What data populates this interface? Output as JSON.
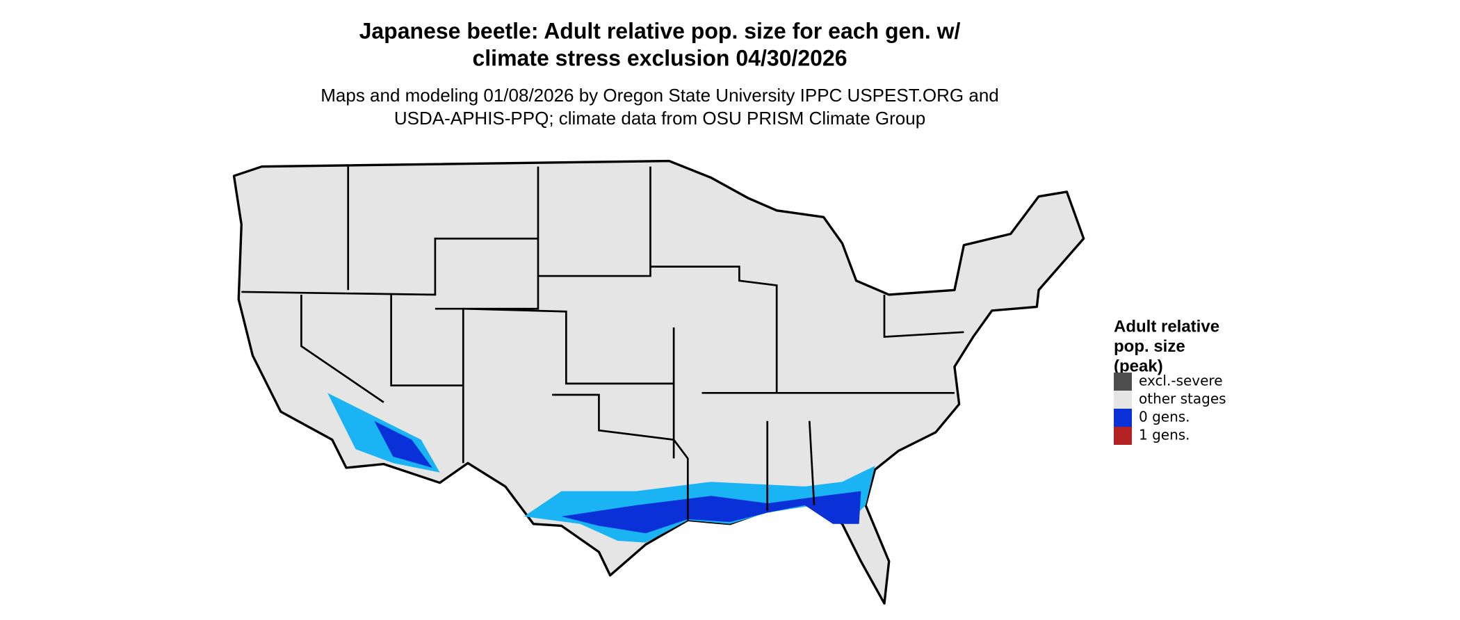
{
  "title_lines": [
    "Japanese beetle: Adult relative pop. size for each gen. w/",
    "climate stress exclusion 04/30/2026"
  ],
  "subtitle_lines": [
    "Maps and modeling 01/08/2026 by Oregon State University IPPC USPEST.ORG and",
    "USDA-APHIS-PPQ; climate data from OSU PRISM Climate Group"
  ],
  "legend": {
    "title_lines": [
      "Adult relative",
      "pop. size",
      "(peak)"
    ],
    "items": [
      {
        "name": "excl.-severe",
        "color": "#4d4d4d"
      },
      {
        "name": "other stages",
        "color": "#e5e5e5"
      },
      {
        "name": "0 gens.",
        "color": "#0a30d8"
      },
      {
        "name": "1 gens.",
        "color": "#b22222"
      }
    ]
  }
}
